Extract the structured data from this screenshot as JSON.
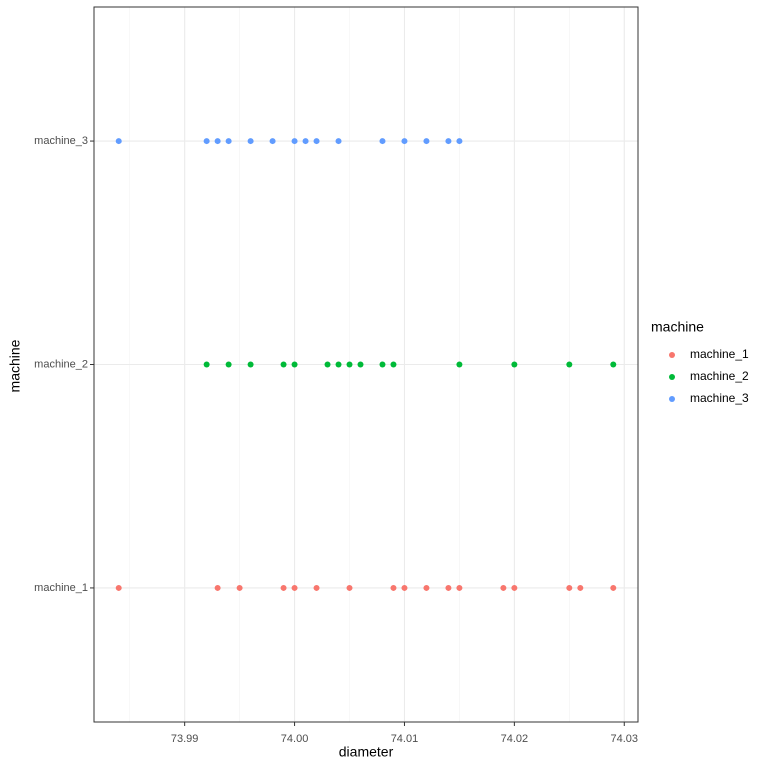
{
  "chart_data": {
    "type": "strip",
    "x_label": "diameter",
    "y_label": "machine",
    "legend_title": "machine",
    "categories": [
      "machine_1",
      "machine_2",
      "machine_3"
    ],
    "series": [
      {
        "name": "machine_1",
        "color": "#F8766D",
        "values": [
          73.984,
          73.993,
          73.995,
          73.999,
          74.0,
          74.002,
          74.005,
          74.009,
          74.01,
          74.012,
          74.014,
          74.015,
          74.019,
          74.02,
          74.025,
          74.026,
          74.029
        ]
      },
      {
        "name": "machine_2",
        "color": "#00BA38",
        "values": [
          73.992,
          73.994,
          73.996,
          73.999,
          74.0,
          74.003,
          74.004,
          74.005,
          74.006,
          74.008,
          74.009,
          74.015,
          74.02,
          74.025,
          74.029
        ]
      },
      {
        "name": "machine_3",
        "color": "#619CFF",
        "values": [
          73.984,
          73.992,
          73.993,
          73.994,
          73.996,
          73.998,
          74.0,
          74.001,
          74.002,
          74.004,
          74.008,
          74.01,
          74.012,
          74.014,
          74.015
        ]
      }
    ],
    "xlim": [
      73.98175,
      74.03125
    ],
    "xticks": [
      73.99,
      {
        "value": 74,
        "label": "74.00"
      },
      74.01,
      74.02,
      74.03
    ],
    "x_minor_grid": [
      73.985,
      73.995,
      74.005,
      74.015,
      74.025
    ],
    "grid": true
  }
}
